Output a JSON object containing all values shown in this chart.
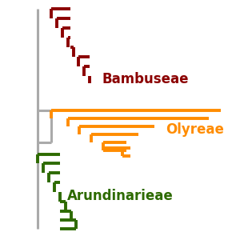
{
  "colors": {
    "bambuseae": "#8B0000",
    "olyreae": "#FF8C00",
    "arundinarieae": "#2D6A00",
    "backbone": "#AAAAAA"
  },
  "lw": 2.8,
  "lw_backbone": 2.2,
  "figsize": [
    3.0,
    3.0
  ],
  "dpi": 100,
  "labels": {
    "Bambuseae": [
      0.43,
      0.67
    ],
    "Olyreae": [
      0.7,
      0.46
    ],
    "Arundinarieae": [
      0.28,
      0.18
    ]
  },
  "label_fontsize": 12,
  "label_colors": {
    "Bambuseae": "#8B0000",
    "Olyreae": "#FF8C00",
    "Arundinarieae": "#2D6A00"
  }
}
